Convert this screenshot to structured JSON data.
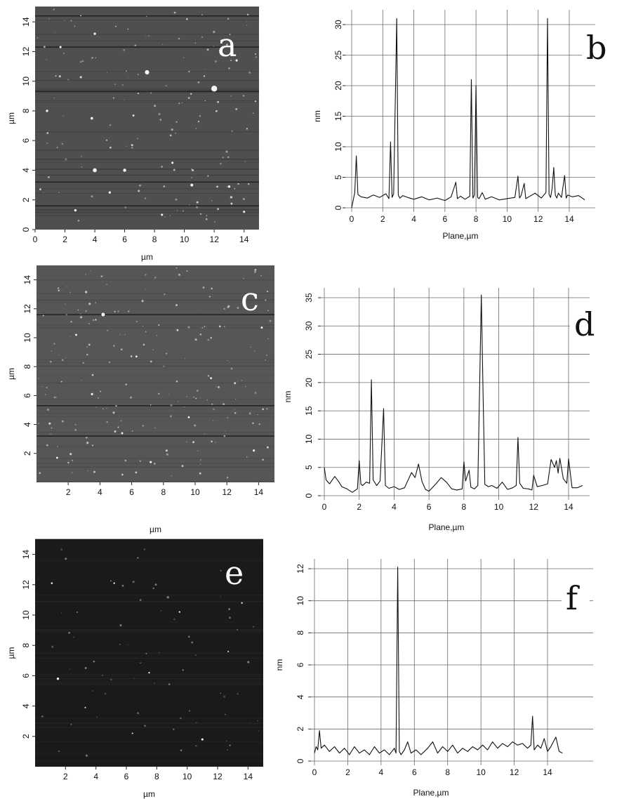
{
  "chart_data": [
    {
      "panel": "a",
      "type": "heatmap",
      "xlabel": "µm",
      "ylabel": "µm",
      "xlim": [
        0,
        15
      ],
      "ylim": [
        0,
        15
      ],
      "xticks": [
        "0",
        "2",
        "4",
        "6",
        "8",
        "10",
        "12",
        "14"
      ],
      "yticks": [
        "0",
        "2",
        "4",
        "6",
        "8",
        "10",
        "12",
        "14"
      ],
      "particles": [
        [
          4,
          4,
          2
        ],
        [
          6,
          4,
          1.6
        ],
        [
          10.5,
          3,
          1.4
        ],
        [
          5,
          2.5,
          1.2
        ],
        [
          12,
          9.5,
          3
        ],
        [
          7.5,
          10.6,
          2.2
        ],
        [
          3.8,
          7.5,
          1.3
        ],
        [
          0.8,
          8,
          1.2
        ],
        [
          4,
          13.2,
          1.2
        ],
        [
          2.7,
          1.3,
          1.2
        ],
        [
          13,
          2.9,
          1.2
        ],
        [
          8.5,
          1,
          1.1
        ],
        [
          1.7,
          12.3,
          1.1
        ],
        [
          13.5,
          11.4,
          1.1
        ],
        [
          9.2,
          4.5,
          1.1
        ],
        [
          14,
          1.2,
          1.1
        ]
      ],
      "scan_lines_y": [
        14.4,
        12.3,
        9.3,
        3.2,
        1.6
      ]
    },
    {
      "panel": "b",
      "type": "line",
      "xlabel": "Plane,µm",
      "ylabel": "nm",
      "xlim": [
        -0.4,
        15
      ],
      "ylim": [
        0,
        33
      ],
      "xticks": [
        0,
        2,
        4,
        6,
        8,
        10,
        12,
        14
      ],
      "yticks": [
        0,
        5,
        10,
        15,
        20,
        25,
        30
      ],
      "x": [
        0,
        0.2,
        0.3,
        0.4,
        0.6,
        1,
        1.4,
        1.8,
        2.2,
        2.4,
        2.5,
        2.6,
        2.7,
        2.9,
        3,
        3.1,
        3.3,
        3.6,
        4,
        4.5,
        5,
        5.5,
        6,
        6.4,
        6.7,
        6.8,
        7,
        7.3,
        7.6,
        7.7,
        7.8,
        7.9,
        8,
        8.1,
        8.2,
        8.4,
        8.6,
        9,
        9.5,
        10,
        10.5,
        10.7,
        10.8,
        10.9,
        11.1,
        11.2,
        11.4,
        11.8,
        12.2,
        12.5,
        12.6,
        12.7,
        12.8,
        12.9,
        13,
        13.1,
        13.2,
        13.3,
        13.5,
        13.7,
        13.8,
        13.9,
        14.2,
        14.6,
        15
      ],
      "values": [
        0,
        2.5,
        8.5,
        2.2,
        1.8,
        1.6,
        2.1,
        1.7,
        2.3,
        1.5,
        10.8,
        1.7,
        2.3,
        31,
        2.1,
        1.6,
        2,
        1.7,
        1.4,
        1.8,
        1.3,
        1.6,
        1.2,
        1.8,
        4.2,
        1.5,
        1.9,
        1.4,
        1.9,
        21,
        1.6,
        2.1,
        20,
        1.7,
        1.5,
        2.5,
        1.4,
        1.8,
        1.3,
        1.5,
        1.7,
        5.2,
        1.6,
        2,
        4,
        1.5,
        1.8,
        2.4,
        1.6,
        2.5,
        31,
        2.2,
        1.7,
        3.2,
        6.6,
        2.1,
        1.6,
        2.4,
        1.7,
        5.3,
        1.6,
        2.1,
        1.8,
        2,
        1.3
      ]
    },
    {
      "panel": "c",
      "type": "heatmap",
      "xlabel": "µm",
      "ylabel": "µm",
      "xlim": [
        0,
        15
      ],
      "ylim": [
        0,
        15
      ],
      "xticks": [
        "2",
        "4",
        "6",
        "8",
        "10",
        "12",
        "14"
      ],
      "yticks": [
        "2",
        "4",
        "6",
        "8",
        "10",
        "12",
        "14"
      ],
      "particles": [
        [
          4.2,
          11.6,
          1.8
        ],
        [
          11.3,
          15.2,
          2.4
        ],
        [
          7.2,
          1.4,
          1.1
        ],
        [
          3.5,
          6.1,
          1.1
        ],
        [
          1.3,
          1.7,
          1
        ],
        [
          9.6,
          4.5,
          1
        ],
        [
          13.7,
          2.2,
          1.1
        ],
        [
          2.5,
          10.2,
          1
        ],
        [
          6.3,
          8.7,
          1
        ],
        [
          11,
          7.2,
          1
        ],
        [
          14.2,
          10.7,
          1
        ],
        [
          5.4,
          3.4,
          1
        ]
      ],
      "scan_lines_y": [
        11.6,
        5.3,
        3.2
      ]
    },
    {
      "panel": "d",
      "type": "line",
      "xlabel": "Plane,µm",
      "ylabel": "nm",
      "xlim": [
        -0.2,
        15
      ],
      "ylim": [
        0,
        36
      ],
      "xticks": [
        0,
        2,
        4,
        6,
        8,
        10,
        12,
        14
      ],
      "yticks": [
        0,
        5,
        10,
        15,
        20,
        25,
        30,
        35
      ],
      "x": [
        0,
        0.1,
        0.3,
        0.6,
        0.8,
        1,
        1.3,
        1.6,
        1.9,
        2,
        2.1,
        2.2,
        2.4,
        2.6,
        2.7,
        2.8,
        3,
        3.2,
        3.4,
        3.5,
        3.7,
        4,
        4.3,
        4.6,
        5,
        5.2,
        5.4,
        5.6,
        5.8,
        6,
        6.4,
        6.7,
        7,
        7.3,
        7.6,
        7.9,
        8,
        8.1,
        8.3,
        8.4,
        8.6,
        8.8,
        9,
        9.1,
        9.2,
        9.4,
        9.6,
        9.9,
        10.2,
        10.5,
        10.8,
        11,
        11.1,
        11.2,
        11.4,
        11.7,
        11.9,
        12,
        12.2,
        12.5,
        12.8,
        13,
        13.2,
        13.3,
        13.4,
        13.5,
        13.7,
        13.9,
        14,
        14.2,
        14.5,
        14.8
      ],
      "values": [
        5,
        2.8,
        2.1,
        3.4,
        2.6,
        1.6,
        1.2,
        0.6,
        1.2,
        6.2,
        2,
        1.8,
        2.4,
        2.2,
        20.5,
        2.8,
        1.8,
        2.6,
        15.4,
        1.8,
        1.3,
        1.6,
        1.1,
        1.4,
        4.1,
        3.2,
        5.6,
        2.5,
        1.1,
        0.8,
        2.1,
        3.2,
        2.4,
        1.2,
        1,
        1.2,
        6,
        2.6,
        4.5,
        1.5,
        1.2,
        1.8,
        35.5,
        18,
        2,
        1.6,
        1.8,
        1.3,
        2.4,
        1.1,
        1.4,
        1.8,
        10.3,
        2.2,
        1.3,
        1.2,
        1,
        3.6,
        1.6,
        1.8,
        2.1,
        6.4,
        5,
        6.2,
        4,
        6.6,
        3,
        2.2,
        6.5,
        1.4,
        1.4,
        1.8
      ]
    },
    {
      "panel": "e",
      "type": "heatmap",
      "xlabel": "µm",
      "ylabel": "µm",
      "xlim": [
        0,
        15
      ],
      "ylim": [
        0,
        15
      ],
      "xticks": [
        "2",
        "4",
        "6",
        "8",
        "10",
        "12",
        "14"
      ],
      "yticks": [
        "2",
        "4",
        "6",
        "8",
        "10",
        "12",
        "14"
      ],
      "particles": [
        [
          1.5,
          5.8,
          1.2
        ],
        [
          11,
          1.8,
          1.1
        ],
        [
          1.1,
          12.1,
          0.9
        ],
        [
          5.2,
          12.1,
          0.8
        ],
        [
          9.5,
          10.2,
          0.8
        ],
        [
          13.6,
          10.8,
          0.8
        ],
        [
          7.5,
          6.2,
          0.8
        ],
        [
          3.3,
          3.9,
          0.7
        ],
        [
          12.7,
          7.6,
          0.7
        ],
        [
          6.4,
          2.2,
          0.7
        ]
      ],
      "scan_lines_y": []
    },
    {
      "panel": "f",
      "type": "line",
      "xlabel": "Plane,µm",
      "ylabel": "nm",
      "xlim": [
        -0.2,
        15
      ],
      "ylim": [
        0,
        12.5
      ],
      "xticks": [
        0,
        2,
        4,
        6,
        8,
        10,
        12,
        14
      ],
      "yticks": [
        0,
        2,
        4,
        6,
        8,
        10,
        12
      ],
      "x": [
        0,
        0.1,
        0.2,
        0.3,
        0.4,
        0.6,
        0.9,
        1.2,
        1.5,
        1.8,
        2.1,
        2.4,
        2.7,
        3,
        3.3,
        3.6,
        3.9,
        4.2,
        4.5,
        4.8,
        4.9,
        5,
        5.1,
        5.2,
        5.4,
        5.6,
        5.8,
        6.1,
        6.4,
        6.8,
        7.1,
        7.4,
        7.7,
        8,
        8.3,
        8.6,
        8.9,
        9.2,
        9.5,
        9.8,
        10.1,
        10.4,
        10.7,
        11,
        11.3,
        11.6,
        11.9,
        12.2,
        12.5,
        12.8,
        13,
        13.1,
        13.2,
        13.4,
        13.6,
        13.8,
        14,
        14.2,
        14.5,
        14.7,
        14.9
      ],
      "values": [
        0.5,
        0.9,
        0.7,
        1.9,
        0.8,
        1,
        0.6,
        0.9,
        0.5,
        0.8,
        0.4,
        0.9,
        0.5,
        0.7,
        0.4,
        0.9,
        0.5,
        0.7,
        0.4,
        0.8,
        0.5,
        12.1,
        0.6,
        0.4,
        0.7,
        1.2,
        0.5,
        0.7,
        0.4,
        0.8,
        1.2,
        0.5,
        0.9,
        0.6,
        1,
        0.5,
        0.8,
        0.6,
        0.9,
        0.7,
        1,
        0.7,
        1.2,
        0.8,
        1.1,
        0.9,
        1.2,
        1,
        1.1,
        0.8,
        1,
        2.8,
        0.7,
        1,
        0.8,
        1.4,
        0.6,
        0.9,
        1.5,
        0.6,
        0.5
      ]
    }
  ],
  "panel_letters": [
    "a",
    "b",
    "c",
    "d",
    "e",
    "f"
  ]
}
